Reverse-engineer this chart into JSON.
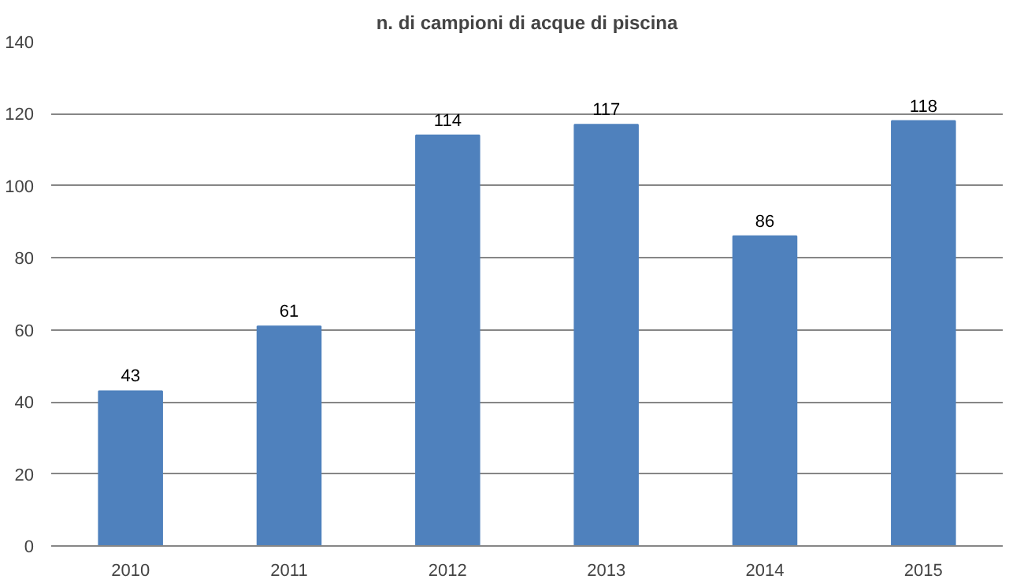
{
  "chart_data": {
    "type": "bar",
    "title": "n. di campioni di acque di piscina",
    "categories": [
      "2010",
      "2011",
      "2012",
      "2013",
      "2014",
      "2015"
    ],
    "values": [
      43,
      61,
      114,
      117,
      86,
      118
    ],
    "color": "#4f81bd",
    "ylim": [
      0,
      140
    ],
    "yticks": [
      0,
      20,
      40,
      60,
      80,
      100,
      120,
      140
    ],
    "grid": "y",
    "data_labels": true
  }
}
